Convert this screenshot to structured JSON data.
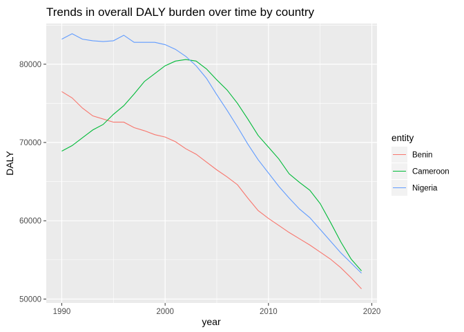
{
  "chart_data": {
    "type": "line",
    "title": "Trends in overall DALY burden over time by country",
    "xlabel": "year",
    "ylabel": "DALY",
    "xlim": [
      1988.5,
      2020.5
    ],
    "ylim": [
      49500,
      85200
    ],
    "x_ticks": [
      1990,
      2000,
      2010,
      2020
    ],
    "y_ticks": [
      50000,
      60000,
      70000,
      80000
    ],
    "x_tick_labels": [
      "1990",
      "2000",
      "2010",
      "2020"
    ],
    "y_tick_labels": [
      "50000",
      "60000",
      "70000",
      "80000"
    ],
    "grid": true,
    "legend": {
      "title": "entity",
      "placement": "right"
    },
    "x": [
      1990,
      1991,
      1992,
      1993,
      1994,
      1995,
      1996,
      1997,
      1998,
      1999,
      2000,
      2001,
      2002,
      2003,
      2004,
      2005,
      2006,
      2007,
      2008,
      2009,
      2010,
      2011,
      2012,
      2013,
      2014,
      2015,
      2016,
      2017,
      2018,
      2019
    ],
    "series": [
      {
        "name": "Benin",
        "color": "#F8766D",
        "values": [
          76500,
          75700,
          74400,
          73400,
          73000,
          72600,
          72600,
          71900,
          71500,
          71000,
          70700,
          70100,
          69200,
          68500,
          67500,
          66500,
          65600,
          64600,
          62900,
          61300,
          60300,
          59400,
          58500,
          57700,
          56900,
          56000,
          55100,
          54000,
          52700,
          51300
        ]
      },
      {
        "name": "Cameroon",
        "color": "#00BA38",
        "values": [
          68900,
          69600,
          70600,
          71600,
          72300,
          73600,
          74700,
          76200,
          77800,
          78800,
          79800,
          80400,
          80600,
          80400,
          79400,
          78000,
          76700,
          75000,
          73000,
          70900,
          69400,
          67900,
          66000,
          64900,
          63900,
          62200,
          59800,
          57300,
          55100,
          53600
        ]
      },
      {
        "name": "Nigeria",
        "color": "#619CFF",
        "values": [
          83200,
          83900,
          83200,
          83000,
          82900,
          83000,
          83700,
          82800,
          82800,
          82800,
          82500,
          81900,
          81000,
          79800,
          78200,
          76100,
          74100,
          72000,
          69800,
          67800,
          66100,
          64400,
          62900,
          61500,
          60400,
          58900,
          57400,
          55900,
          54600,
          53300
        ]
      }
    ]
  }
}
